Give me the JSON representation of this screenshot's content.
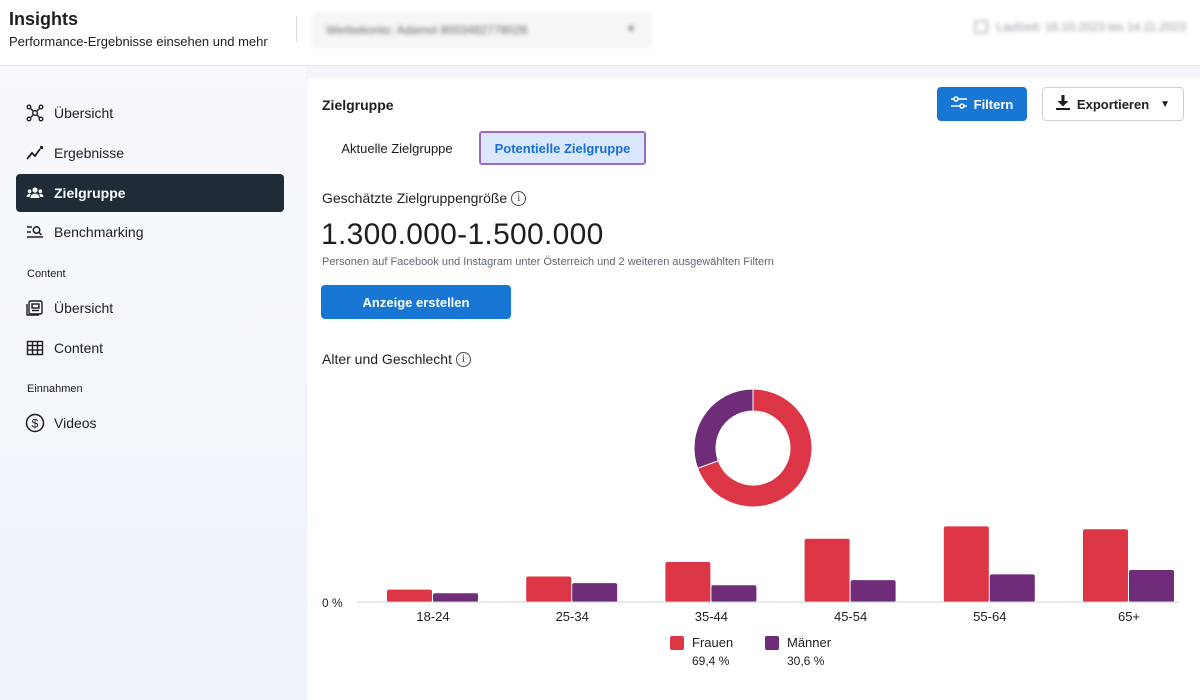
{
  "header": {
    "title": "Insights",
    "subtitle": "Performance-Ergebnisse einsehen und mehr",
    "account_label": "Werbekonto: Adamol 8003482778028",
    "date_range": "Laufzeit: 16.10.2023 bis 14.11.2023"
  },
  "sidebar": {
    "items_top": [
      {
        "label": "Übersicht",
        "icon": "network-icon"
      },
      {
        "label": "Ergebnisse",
        "icon": "trend-icon"
      },
      {
        "label": "Zielgruppe",
        "icon": "people-icon",
        "active": true
      },
      {
        "label": "Benchmarking",
        "icon": "benchmark-icon"
      }
    ],
    "section_content": "Content",
    "items_content": [
      {
        "label": "Übersicht",
        "icon": "posts-icon"
      },
      {
        "label": "Content",
        "icon": "table-icon"
      }
    ],
    "section_income": "Einnahmen",
    "items_income": [
      {
        "label": "Videos",
        "icon": "dollar-icon"
      }
    ]
  },
  "main": {
    "title": "Zielgruppe",
    "filter_label": "Filtern",
    "export_label": "Exportieren",
    "tabs": [
      {
        "label": "Aktuelle Zielgruppe",
        "selected": false
      },
      {
        "label": "Potentielle Zielgruppe",
        "selected": true
      }
    ],
    "estimate_label": "Geschätzte Zielgruppengröße",
    "estimate_value": "1.300.000-1.500.000",
    "estimate_desc": "Personen auf Facebook und Instagram unter Österreich und 2 weiteren ausgewählten Filtern",
    "create_ad_label": "Anzeige erstellen",
    "age_gender_label": "Alter und Geschlecht"
  },
  "colors": {
    "accent": "#1877d4",
    "women": "#dc3545",
    "men": "#6f2c79",
    "sidebar_active": "#1f2b36"
  },
  "chart_data": [
    {
      "type": "pie",
      "labels": [
        "Frauen",
        "Männer"
      ],
      "values": [
        69.4,
        30.6
      ],
      "colors": [
        "#dc3545",
        "#6f2c79"
      ]
    },
    {
      "type": "bar",
      "categories": [
        "18-24",
        "25-34",
        "35-44",
        "45-54",
        "55-64",
        "65+"
      ],
      "series": [
        {
          "name": "Frauen",
          "values": [
            1.7,
            3.5,
            5.5,
            8.7,
            10.4,
            10.0
          ]
        },
        {
          "name": "Männer",
          "values": [
            1.2,
            2.6,
            2.3,
            3.0,
            3.8,
            4.4
          ]
        }
      ],
      "ylim": [
        0,
        11
      ],
      "y_tick_label": "0 %",
      "legend": [
        {
          "name": "Frauen",
          "share": "69,4 %"
        },
        {
          "name": "Männer",
          "share": "30,6 %"
        }
      ]
    }
  ]
}
